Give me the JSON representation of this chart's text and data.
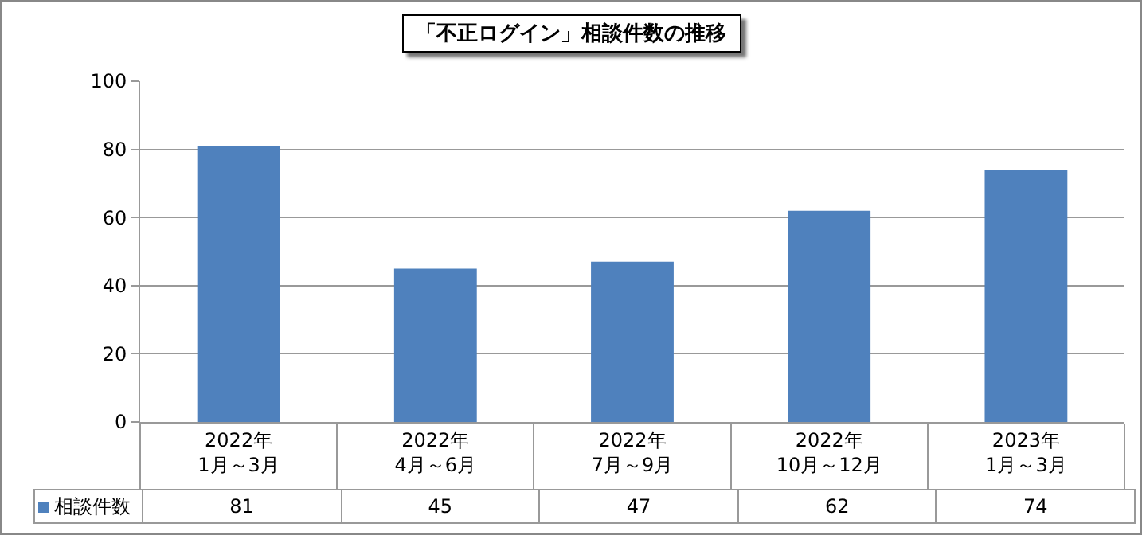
{
  "chart_data": {
    "type": "bar",
    "title": "「不正ログイン」相談件数の推移",
    "categories": [
      "2022年\n1月～3月",
      "2022年\n4月～6月",
      "2022年\n7月～9月",
      "2022年\n10月～12月",
      "2023年\n1月～3月"
    ],
    "series": [
      {
        "name": "相談件数",
        "color": "#4f81bd",
        "values": [
          81,
          45,
          47,
          62,
          74
        ]
      }
    ],
    "ylim": [
      0,
      100
    ],
    "yticks": [
      0,
      20,
      40,
      60,
      80,
      100
    ],
    "grid": "y",
    "data_labels": true
  }
}
